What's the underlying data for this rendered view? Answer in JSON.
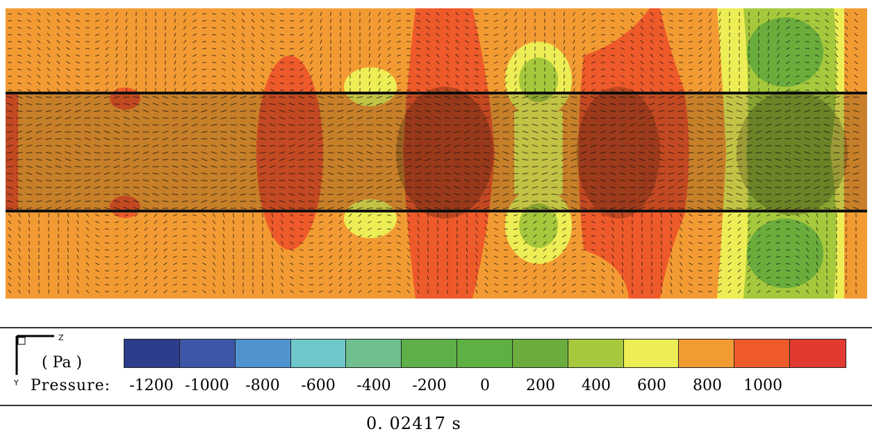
{
  "legend": {
    "unit": "( Pa )",
    "label": "Pressure:",
    "ticks": [
      "-1200",
      "-1000",
      "-800",
      "-600",
      "-400",
      "-200",
      "0",
      "200",
      "400",
      "600",
      "800",
      "1000"
    ],
    "colors": [
      "#2e3c8c",
      "#3e56a6",
      "#4f93cf",
      "#6fc7c9",
      "#6fbf8f",
      "#5fb048",
      "#5fb042",
      "#6aad3c",
      "#a6c83c",
      "#eded55",
      "#f39b33",
      "#ee5a2a",
      "#e23a30"
    ]
  },
  "axes": {
    "z": "Z",
    "y": "Y"
  },
  "time": "0. 02417  s",
  "field_colors": {
    "background": "#f39b33",
    "high": "#ee5a2a",
    "yellow": "#eded55",
    "light_green": "#a6c83c",
    "green": "#6aad3c",
    "arrow": "#111111"
  }
}
